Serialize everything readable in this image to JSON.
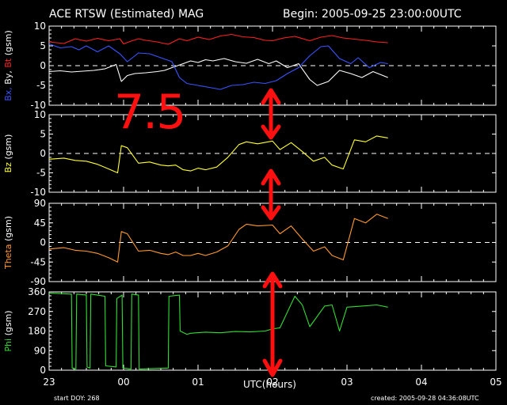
{
  "title": "ACE RTSW (Estimated) MAG",
  "begin_label": "Begin: 2005-09-25 23:00:00UTC",
  "xlabel": "UTC(hours)",
  "start_doy": "start DOY:  268",
  "created": "created: 2005-09-28 04:36:08UTC",
  "annotation_text": "7.5",
  "colors": {
    "bx": "#3a54ff",
    "by": "#ffffff",
    "bt": "#ff2020",
    "bz": "#ffff33",
    "theta": "#ff9a30",
    "phi": "#33dd33",
    "annotation": "#ff1010",
    "axis": "#ffffff"
  },
  "chart_data": [
    {
      "type": "line",
      "panel": "B components",
      "ylabel_parts": [
        {
          "text": "Bx,",
          "color": "#3a54ff"
        },
        {
          "text": " By,",
          "color": "#ffffff"
        },
        {
          "text": " Bt",
          "color": "#ff2020"
        },
        {
          "text": " (gsm)",
          "color": "#ffffff"
        }
      ],
      "ylim": [
        -10,
        10
      ],
      "yticks": [
        "10",
        "5",
        "0",
        "-5",
        "-10"
      ],
      "xlim": [
        0,
        6
      ],
      "xticks": [
        "23",
        "00",
        "01",
        "02",
        "03",
        "04",
        "05"
      ],
      "zero_line": true,
      "series": [
        {
          "name": "Bt",
          "color": "#ff2020",
          "x": [
            0,
            0.2,
            0.35,
            0.5,
            0.65,
            0.8,
            0.95,
            1.0,
            1.1,
            1.2,
            1.3,
            1.45,
            1.6,
            1.75,
            1.85,
            2.0,
            2.15,
            2.3,
            2.45,
            2.6,
            2.75,
            2.9,
            3.0,
            3.15,
            3.3,
            3.5,
            3.65,
            3.8,
            3.95,
            4.1,
            4.25,
            4.4,
            4.55
          ],
          "values": [
            6,
            5.6,
            6.8,
            6.2,
            6.9,
            6.3,
            6.8,
            5.5,
            6.2,
            6.8,
            6.4,
            6.0,
            5.4,
            6.8,
            6.3,
            7.2,
            6.6,
            7.5,
            7.9,
            7.3,
            7.1,
            6.4,
            6.3,
            7.0,
            7.4,
            6.3,
            7.2,
            7.6,
            7.0,
            6.7,
            6.4,
            6.0,
            5.8
          ]
        },
        {
          "name": "By",
          "color": "#ffffff",
          "x": [
            0,
            0.15,
            0.3,
            0.45,
            0.6,
            0.75,
            0.9,
            0.97,
            1.05,
            1.15,
            1.3,
            1.45,
            1.55,
            1.65,
            1.8,
            1.9,
            2.0,
            2.1,
            2.2,
            2.35,
            2.5,
            2.65,
            2.8,
            2.95,
            3.05,
            3.2,
            3.35,
            3.5,
            3.6,
            3.75,
            3.9,
            4.05,
            4.2,
            4.35,
            4.55
          ],
          "values": [
            -1.5,
            -1.3,
            -1.6,
            -1.4,
            -1.2,
            -0.8,
            0.3,
            -4,
            -2.5,
            -2,
            -1.8,
            -1.5,
            -1.2,
            -0.5,
            0.5,
            1.2,
            0.8,
            1.5,
            1.2,
            1.8,
            1.0,
            0.6,
            1.6,
            0.5,
            1.2,
            -0.5,
            0.5,
            -3.5,
            -5,
            -4,
            -1.2,
            -2.0,
            -3.0,
            -1.5,
            -3.0
          ]
        },
        {
          "name": "Bx",
          "color": "#3a54ff",
          "x": [
            0,
            0.15,
            0.3,
            0.4,
            0.5,
            0.65,
            0.8,
            0.95,
            1.05,
            1.2,
            1.35,
            1.5,
            1.65,
            1.75,
            1.85,
            2.0,
            2.15,
            2.3,
            2.45,
            2.6,
            2.75,
            2.9,
            3.05,
            3.2,
            3.35,
            3.5,
            3.65,
            3.75,
            3.9,
            4.05,
            4.15,
            4.3,
            4.45,
            4.55
          ],
          "values": [
            5.5,
            4.5,
            4.8,
            4.0,
            5.0,
            3.5,
            5.0,
            3.0,
            1.0,
            3.2,
            3.0,
            2.0,
            1.0,
            -3,
            -4.5,
            -5,
            -5.5,
            -6,
            -5,
            -4.8,
            -4.2,
            -4.5,
            -3.8,
            -2,
            -0.5,
            2.5,
            4.8,
            5.0,
            1.8,
            0.5,
            2.0,
            -0.5,
            0.8,
            0.5
          ]
        }
      ]
    },
    {
      "type": "line",
      "panel": "Bz",
      "ylabel_parts": [
        {
          "text": "Bz",
          "color": "#ffff33"
        },
        {
          "text": "  (gsm)",
          "color": "#ffffff"
        }
      ],
      "ylim": [
        -10,
        10
      ],
      "yticks": [
        "10",
        "5",
        "0",
        "-5",
        "-10"
      ],
      "xlim": [
        0,
        6
      ],
      "zero_line": true,
      "series": [
        {
          "name": "Bz",
          "color": "#ffff33",
          "x": [
            0,
            0.2,
            0.35,
            0.5,
            0.65,
            0.8,
            0.92,
            0.97,
            1.05,
            1.2,
            1.35,
            1.5,
            1.6,
            1.7,
            1.8,
            1.9,
            2.0,
            2.1,
            2.25,
            2.4,
            2.55,
            2.65,
            2.8,
            3.0,
            3.1,
            3.25,
            3.4,
            3.55,
            3.7,
            3.8,
            3.95,
            4.1,
            4.25,
            4.4,
            4.55
          ],
          "values": [
            -1.5,
            -1.2,
            -1.8,
            -2.0,
            -2.8,
            -4.0,
            -5.0,
            2.0,
            1.5,
            -2.5,
            -2.2,
            -3.0,
            -3.2,
            -3.0,
            -4.2,
            -4.5,
            -3.8,
            -4.2,
            -3.5,
            -1.0,
            2.3,
            3.0,
            2.5,
            3.2,
            1.0,
            2.8,
            0.5,
            -2.0,
            -1.0,
            -3.0,
            -4.0,
            3.5,
            3.0,
            4.5,
            4.0
          ]
        }
      ]
    },
    {
      "type": "line",
      "panel": "Theta",
      "ylabel_parts": [
        {
          "text": "Theta",
          "color": "#ff9a30"
        },
        {
          "text": "  (gsm)",
          "color": "#ffffff"
        }
      ],
      "ylim": [
        -90,
        90
      ],
      "yticks": [
        "90",
        "45",
        "0",
        "-45",
        "-90"
      ],
      "xlim": [
        0,
        6
      ],
      "zero_line": true,
      "series": [
        {
          "name": "Theta",
          "color": "#ff9a30",
          "x": [
            0,
            0.2,
            0.35,
            0.5,
            0.65,
            0.8,
            0.92,
            0.97,
            1.05,
            1.2,
            1.35,
            1.5,
            1.6,
            1.7,
            1.8,
            1.9,
            2.0,
            2.1,
            2.25,
            2.4,
            2.55,
            2.65,
            2.8,
            3.0,
            3.1,
            3.25,
            3.4,
            3.55,
            3.7,
            3.8,
            3.95,
            4.1,
            4.25,
            4.4,
            4.55
          ],
          "values": [
            -15,
            -12,
            -18,
            -20,
            -25,
            -35,
            -45,
            25,
            20,
            -20,
            -18,
            -25,
            -28,
            -22,
            -30,
            -30,
            -25,
            -30,
            -22,
            -8,
            30,
            42,
            38,
            40,
            20,
            38,
            8,
            -20,
            -10,
            -30,
            -40,
            55,
            45,
            65,
            55
          ]
        }
      ]
    },
    {
      "type": "line",
      "panel": "Phi",
      "ylabel_parts": [
        {
          "text": "Phi",
          "color": "#33dd33"
        },
        {
          "text": "  (gsm)",
          "color": "#ffffff"
        }
      ],
      "ylim": [
        0,
        360
      ],
      "yticks": [
        "360",
        "270",
        "180",
        "90",
        "0"
      ],
      "xlim": [
        0,
        6
      ],
      "zero_line": false,
      "series": [
        {
          "name": "Phi",
          "color": "#33dd33",
          "x": [
            0,
            0.3,
            0.31,
            0.36,
            0.37,
            0.5,
            0.51,
            0.55,
            0.56,
            0.75,
            0.76,
            0.9,
            0.91,
            0.98,
            0.99,
            1.1,
            1.11,
            1.2,
            1.21,
            1.6,
            1.61,
            1.75,
            1.76,
            1.85,
            1.9,
            2.1,
            2.3,
            2.5,
            2.7,
            2.9,
            3.0,
            3.1,
            3.3,
            3.4,
            3.5,
            3.7,
            3.8,
            3.9,
            4.0,
            4.2,
            4.4,
            4.55
          ],
          "values": [
            355,
            350,
            10,
            5,
            350,
            345,
            15,
            10,
            350,
            340,
            20,
            15,
            330,
            345,
            10,
            5,
            350,
            345,
            5,
            10,
            340,
            345,
            180,
            165,
            170,
            175,
            172,
            178,
            176,
            180,
            190,
            195,
            340,
            300,
            200,
            295,
            300,
            180,
            290,
            295,
            300,
            290
          ]
        }
      ]
    }
  ]
}
